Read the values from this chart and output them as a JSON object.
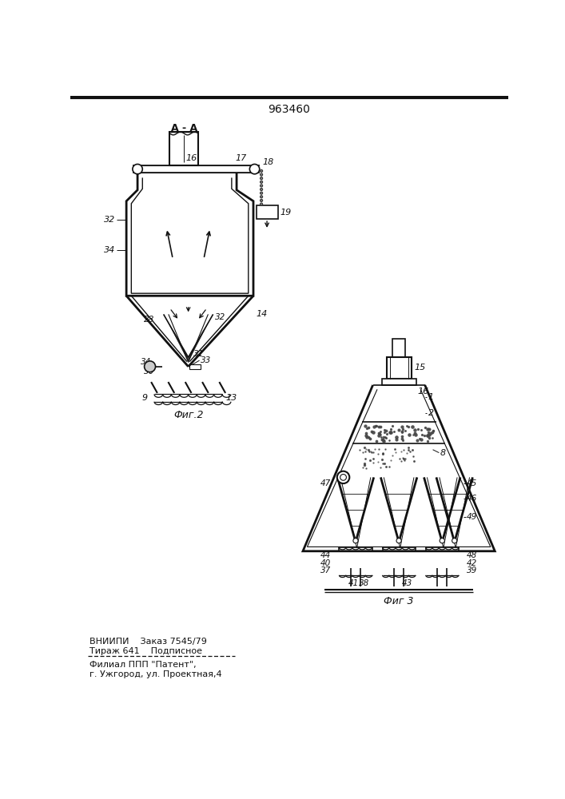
{
  "title_number": "963460",
  "fig2_label": "Фиг.2",
  "fig3_label": "Фиг 3",
  "section_label": "A - A",
  "footer_line1": "ВНИИПИ    Заказ 7545/79",
  "footer_line2": "Тираж 641    Подписное",
  "footer_line3": "Филиал ППП \"Патент\",",
  "footer_line4": "г. Ужгород, ул. Проектная,4",
  "bg_color": "#ffffff",
  "line_color": "#111111"
}
